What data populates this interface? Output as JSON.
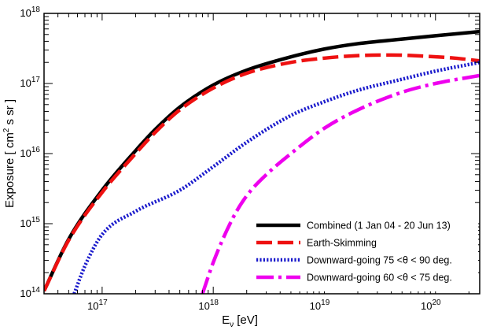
{
  "chart_data": {
    "type": "line",
    "title": "",
    "xlabel": {
      "base": "E",
      "sub": "ν",
      "unit": " [eV]"
    },
    "ylabel": {
      "pre": "Exposure  [ cm",
      "sup": "2",
      "post": " s sr ]"
    },
    "xscale": "log",
    "yscale": "log",
    "xlim": [
      3e+16,
      2.5e+20
    ],
    "ylim": [
      100000000000000.0,
      1e+18
    ],
    "xticks": [
      {
        "value": 1e+17,
        "base": "10",
        "exp": "17"
      },
      {
        "value": 1e+18,
        "base": "10",
        "exp": "18"
      },
      {
        "value": 1e+19,
        "base": "10",
        "exp": "19"
      },
      {
        "value": 1e+20,
        "base": "10",
        "exp": "20"
      }
    ],
    "yticks": [
      {
        "value": 100000000000000.0,
        "base": "10",
        "exp": "14"
      },
      {
        "value": 1000000000000000.0,
        "base": "10",
        "exp": "15"
      },
      {
        "value": 1e+16,
        "base": "10",
        "exp": "16"
      },
      {
        "value": 1e+17,
        "base": "10",
        "exp": "17"
      },
      {
        "value": 1e+18,
        "base": "10",
        "exp": "18"
      }
    ],
    "grid": false,
    "legend_position": "bottom-right",
    "series": [
      {
        "name": "Combined (1 Jan 04 - 20 Jun 13)",
        "color": "#000000",
        "style": "solid",
        "x": [
          3e+16,
          5e+16,
          1e+17,
          2e+17,
          3e+17,
          5e+17,
          1e+18,
          2e+18,
          5e+18,
          1e+19,
          2e+19,
          5e+19,
          1e+20,
          2.5e+20
        ],
        "y": [
          110000000000000.0,
          600000000000000.0,
          3000000000000000.0,
          1.1e+16,
          2.2e+16,
          4.6e+16,
          9.5e+16,
          1.55e+17,
          2.4e+17,
          3.1e+17,
          3.7e+17,
          4.3e+17,
          4.8e+17,
          5.5e+17
        ]
      },
      {
        "name": "Earth-Skimming",
        "color": "#ee1111",
        "style": "dashed",
        "x": [
          3e+16,
          5e+16,
          1e+17,
          2e+17,
          3e+17,
          5e+17,
          1e+18,
          2e+18,
          5e+18,
          1e+19,
          2e+19,
          4e+19,
          8e+19,
          1.5e+20,
          2.5e+20
        ],
        "y": [
          110000000000000.0,
          580000000000000.0,
          2800000000000000.0,
          1e+16,
          2e+16,
          4.2e+16,
          8.6e+16,
          1.4e+17,
          2e+17,
          2.3e+17,
          2.5e+17,
          2.55e+17,
          2.45e+17,
          2.3e+17,
          2.1e+17
        ]
      },
      {
        "name": "Downward-going 75 <θ < 90 deg.",
        "color": "#1a1acc",
        "style": "dotted",
        "x": [
          5.6e+16,
          7e+16,
          1e+17,
          2e+17,
          5e+17,
          1e+18,
          2e+18,
          5e+18,
          1e+19,
          2e+19,
          5e+19,
          1e+20,
          2.5e+20
        ],
        "y": [
          100000000000000.0,
          250000000000000.0,
          700000000000000.0,
          1500000000000000.0,
          3000000000000000.0,
          6500000000000000.0,
          1.45e+16,
          3.5e+16,
          5.5e+16,
          8e+16,
          1.15e+17,
          1.5e+17,
          2e+17
        ]
      },
      {
        "name": "Downward-going 60 <θ < 75 deg.",
        "color": "#ee00ee",
        "style": "dashdot",
        "x": [
          8e+17,
          1e+18,
          1.5e+18,
          2e+18,
          3e+18,
          5e+18,
          1e+19,
          2e+19,
          5e+19,
          1e+20,
          2.5e+20
        ],
        "y": [
          100000000000000.0,
          280000000000000.0,
          1200000000000000.0,
          2500000000000000.0,
          5000000000000000.0,
          1e+16,
          2.3e+16,
          4.2e+16,
          7.5e+16,
          1e+17,
          1.3e+17
        ]
      }
    ]
  }
}
